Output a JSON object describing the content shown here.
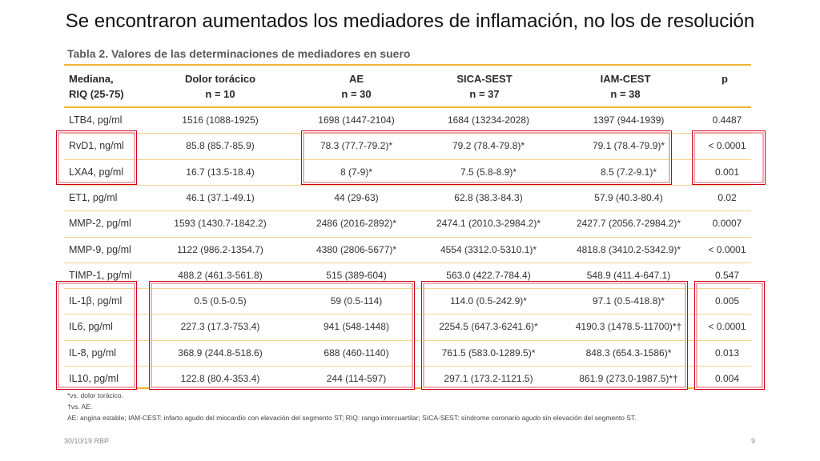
{
  "slide": {
    "title": "Se encontraron aumentados los mediadores de inflamación, no los de resolución",
    "date": "30/10/19 RBP",
    "page": "9"
  },
  "table": {
    "caption": "Tabla 2. Valores de las determinaciones de mediadores en suero",
    "headers": [
      {
        "line1": "Mediana,",
        "line2": "RIQ (25-75)"
      },
      {
        "line1": "Dolor torácico",
        "line2": "n = 10"
      },
      {
        "line1": "AE",
        "line2": "n = 30"
      },
      {
        "line1": "SICA-SEST",
        "line2": "n = 37"
      },
      {
        "line1": "IAM-CEST",
        "line2": "n = 38"
      },
      {
        "line1": "p",
        "line2": ""
      }
    ],
    "rows": [
      {
        "label": "LTB4, pg/ml",
        "c1": "1516 (1088-1925)",
        "c2": "1698 (1447-2104)",
        "c3": "1684 (13234-2028)",
        "c4": "1397 (944-1939)",
        "p": "0.4487"
      },
      {
        "label": "RvD1, ng/ml",
        "c1": "85.8 (85.7-85.9)",
        "c2": "78.3 (77.7-79.2)*",
        "c3": "79.2 (78.4-79.8)*",
        "c4": "79.1 (78.4-79.9)*",
        "p": "< 0.0001"
      },
      {
        "label": "LXA4, pg/ml",
        "c1": "16.7 (13.5-18.4)",
        "c2": "8 (7-9)*",
        "c3": "7.5 (5.8-8.9)*",
        "c4": "8.5 (7.2-9.1)*",
        "p": "0.001"
      },
      {
        "label": "ET1, pg/ml",
        "c1": "46.1 (37.1-49.1)",
        "c2": "44 (29-63)",
        "c3": "62.8 (38.3-84.3)",
        "c4": "57.9 (40.3-80.4)",
        "p": "0.02"
      },
      {
        "label": "MMP-2, pg/ml",
        "c1": "1593 (1430.7-1842.2)",
        "c2": "2486 (2016-2892)*",
        "c3": "2474.1 (2010.3-2984.2)*",
        "c4": "2427.7 (2056.7-2984.2)*",
        "p": "0.0007"
      },
      {
        "label": "MMP-9, pg/ml",
        "c1": "1122 (986.2-1354.7)",
        "c2": "4380 (2806-5677)*",
        "c3": "4554 (3312.0-5310.1)*",
        "c4": "4818.8 (3410.2-5342.9)*",
        "p": "< 0.0001"
      },
      {
        "label": "TIMP-1, pg/ml",
        "c1": "488.2 (461.3-561.8)",
        "c2": "515 (389-604)",
        "c3": "563.0 (422.7-784.4)",
        "c4": "548.9 (411.4-647.1)",
        "p": "0.547"
      },
      {
        "label": "IL-1β, pg/ml",
        "c1": "0.5 (0.5-0.5)",
        "c2": "59 (0.5-114)",
        "c3": "114.0 (0.5-242.9)*",
        "c4": "97.1 (0.5-418.8)*",
        "p": "0.005"
      },
      {
        "label": "IL6, pg/ml",
        "c1": "227.3 (17.3-753.4)",
        "c2": "941 (548-1448)",
        "c3": "2254.5 (647.3-6241.6)*",
        "c4": "4190.3 (1478.5-11700)*†",
        "p": "< 0.0001"
      },
      {
        "label": "IL-8, pg/ml",
        "c1": "368.9 (244.8-518.6)",
        "c2": "688 (460-1140)",
        "c3": "761.5 (583.0-1289.5)*",
        "c4": "848.3 (654.3-1586)*",
        "p": "0.013"
      },
      {
        "label": "IL10, pg/ml",
        "c1": "122.8 (80.4-353.4)",
        "c2": "244 (114-597)",
        "c3": "297.1 (173.2-1121.5)",
        "c4": "861.9 (273.0-1987.5)*†",
        "p": "0.004"
      }
    ],
    "footnotes": [
      "*vs. dolor torácico.",
      "†vs. AE.",
      "AE: angina estable; IAM-CEST: infarto agudo del miocardio con elevación del segmento ST; RIQ: rango intercuartilar; SICA-SEST: síndrome coronario agudo sin elevación del segmento ST."
    ]
  },
  "colors": {
    "rule": "#f2b233",
    "highlight": "#d0021b"
  }
}
